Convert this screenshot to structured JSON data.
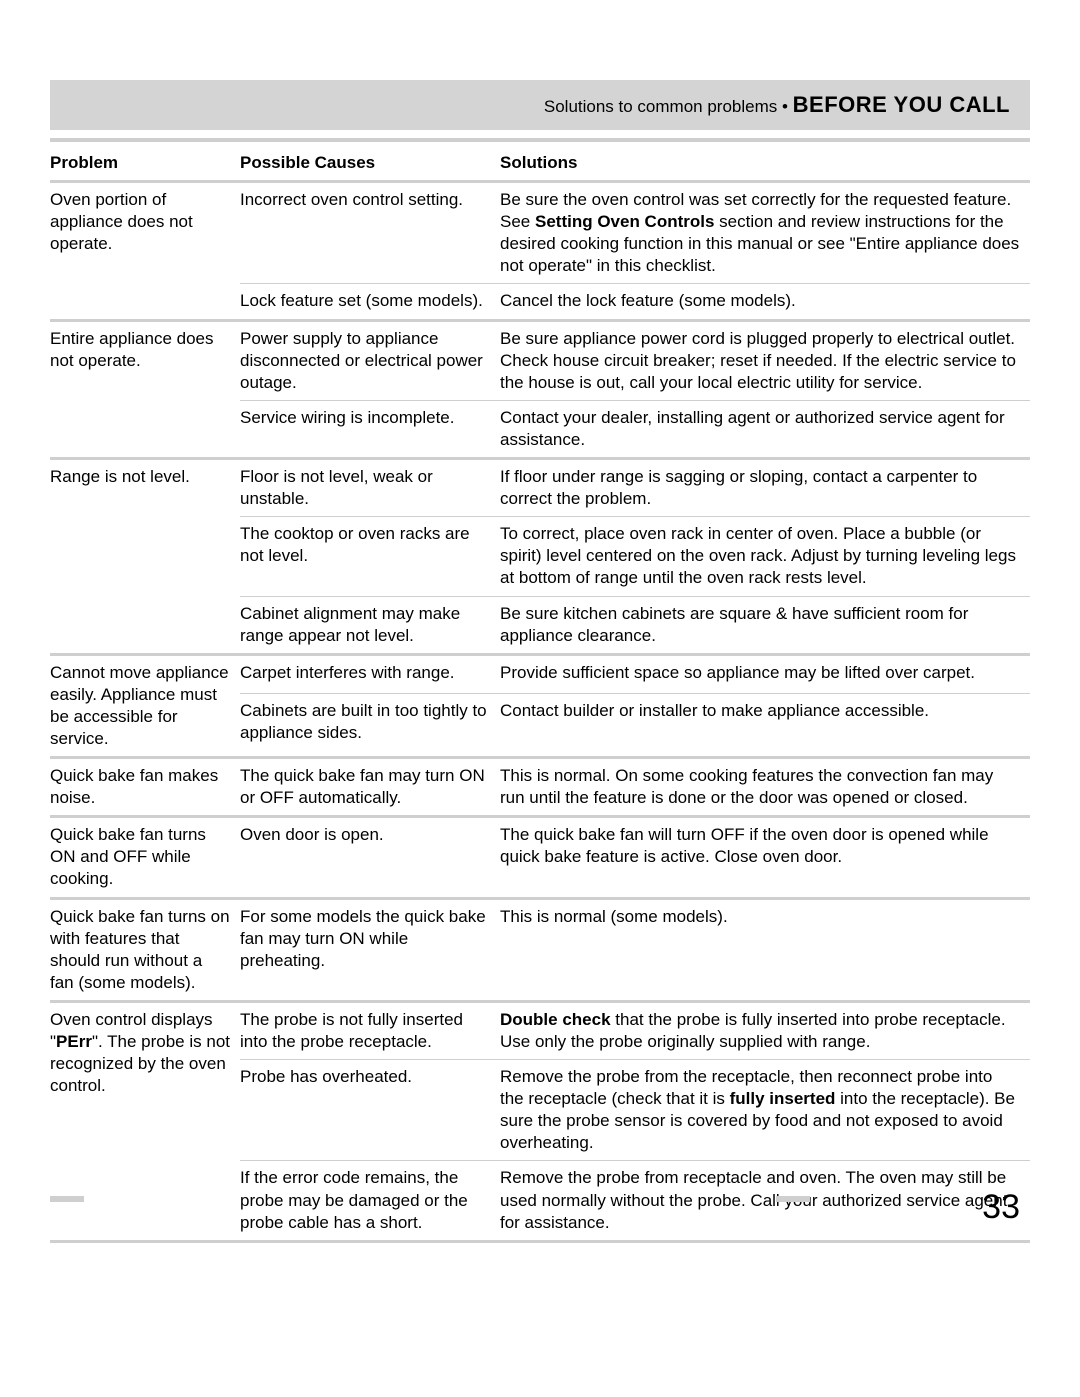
{
  "header": {
    "subtitle": "Solutions to common problems  •  ",
    "title": "BEFORE YOU CALL"
  },
  "columns": {
    "problem": "Problem",
    "cause": "Possible Causes",
    "solution": "Solutions"
  },
  "rows": [
    {
      "problem": "Oven portion of appliance does not operate.",
      "entries": [
        {
          "cause": "Incorrect oven control setting.",
          "solution_html": "Be sure the oven control was set correctly for the requested feature. See <b>Setting Oven Controls</b> section and review instructions for the desired cooking function in this manual or see \"Entire appliance does not operate\" in this checklist."
        },
        {
          "cause": "Lock feature set (some models).",
          "solution_html": "Cancel the lock feature (some models)."
        }
      ]
    },
    {
      "problem": "Entire appliance does not operate.",
      "entries": [
        {
          "cause": "Power supply to appliance disconnected or electrical power outage.",
          "solution_html": "Be sure appliance power cord is plugged properly to electrical outlet. Check house circuit breaker; reset if needed. If the electric service to the house is out, call your local electric utility for service."
        },
        {
          "cause": "Service wiring is incomplete.",
          "solution_html": "Contact your dealer, installing agent or authorized service agent for assistance."
        }
      ]
    },
    {
      "problem": "Range is not level.",
      "entries": [
        {
          "cause": "Floor is not level, weak or unstable.",
          "solution_html": "If floor under range is sagging or sloping, contact a carpenter to correct the problem."
        },
        {
          "cause": "The cooktop or oven racks are not level.",
          "solution_html": "To correct, place oven rack in center of oven. Place a bubble (or spirit) level centered on the oven rack. Adjust by turning leveling legs at bottom of range until the oven rack rests level."
        },
        {
          "cause": "Cabinet alignment may make range appear not level.",
          "solution_html": "Be sure kitchen cabinets are square & have sufficient room for appliance clearance."
        }
      ]
    },
    {
      "problem": "Cannot move appliance easily. Appliance must be accessible for service.",
      "entries": [
        {
          "cause": "Carpet interferes with range.",
          "solution_html": "Provide sufficient space so appliance may be lifted over carpet."
        },
        {
          "cause": "Cabinets are built in too tightly to appliance sides.",
          "solution_html": "Contact builder or installer to make appliance accessible."
        }
      ]
    },
    {
      "problem": "Quick bake fan makes noise.",
      "entries": [
        {
          "cause": "The quick bake fan may turn ON or OFF automatically.",
          "solution_html": "This is normal. On some cooking features the convection fan may run until the feature is done or the door was opened or closed."
        }
      ]
    },
    {
      "problem": "Quick bake fan turns ON and OFF while cooking.",
      "entries": [
        {
          "cause": "Oven door is open.",
          "solution_html": "The quick bake fan will turn OFF if the oven door is opened while quick bake feature is active. Close oven door."
        }
      ]
    },
    {
      "problem": "Quick bake fan turns on with features  that should run without a fan (some models).",
      "entries": [
        {
          "cause": "For some models the quick bake fan may turn ON while preheating.",
          "solution_html": "This is normal (some models)."
        }
      ]
    },
    {
      "problem_html": "Oven control displays \"<b>PErr</b>\". The probe is not recognized by the oven control.",
      "entries": [
        {
          "cause": "The probe is not fully inserted into the probe receptacle.",
          "solution_html": "<b>Double check</b> that the probe is fully inserted into probe receptacle. Use only the probe originally supplied with range."
        },
        {
          "cause": "Probe has overheated.",
          "solution_html": "Remove the probe from the receptacle, then reconnect probe into the receptacle (check that it is <b>fully inserted</b> into the receptacle). Be sure the probe sensor is covered by food and not exposed to avoid overheating."
        },
        {
          "cause": "If the error code remains, the probe may be damaged or the probe cable has a short.",
          "solution_html": "Remove the probe from receptacle and oven. The oven may still be used normally without the probe. Call your authorized service agent for assistance."
        }
      ]
    }
  ],
  "page_number": "33"
}
